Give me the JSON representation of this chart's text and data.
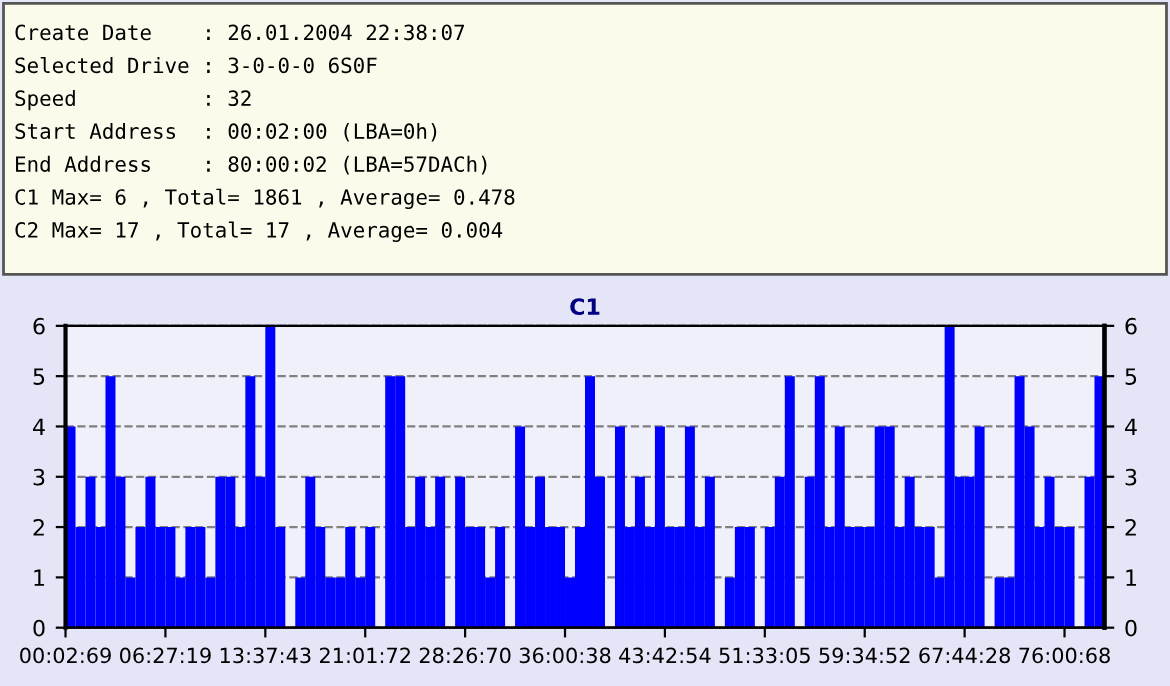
{
  "chart_data": {
    "type": "bar",
    "title": "C1",
    "color": "#0000ff",
    "categories": [
      "00:02:69",
      null,
      null,
      null,
      null,
      null,
      null,
      null,
      null,
      null,
      "06:27:19",
      null,
      null,
      null,
      null,
      null,
      null,
      null,
      null,
      null,
      "13:37:43",
      null,
      null,
      null,
      null,
      null,
      null,
      null,
      null,
      null,
      "21:01:72",
      null,
      null,
      null,
      null,
      null,
      null,
      null,
      null,
      null,
      "28:26:70",
      null,
      null,
      null,
      null,
      null,
      null,
      null,
      null,
      null,
      "36:00:38",
      null,
      null,
      null,
      null,
      null,
      null,
      null,
      null,
      null,
      "43:42:54",
      null,
      null,
      null,
      null,
      null,
      null,
      null,
      null,
      null,
      "51:33:05",
      null,
      null,
      null,
      null,
      null,
      null,
      null,
      null,
      null,
      "59:34:52",
      null,
      null,
      null,
      null,
      null,
      null,
      null,
      null,
      null,
      "67:44:28",
      null,
      null,
      null,
      null,
      null,
      null,
      null,
      null,
      null,
      "76:00:68",
      null,
      null,
      null
    ],
    "values": [
      4,
      2,
      3,
      2,
      5,
      3,
      1,
      2,
      3,
      2,
      2,
      1,
      2,
      2,
      1,
      3,
      3,
      2,
      5,
      3,
      6,
      2,
      0,
      1,
      3,
      2,
      1,
      1,
      2,
      1,
      2,
      0,
      5,
      5,
      2,
      3,
      2,
      3,
      0,
      3,
      2,
      2,
      1,
      2,
      0,
      4,
      2,
      3,
      2,
      2,
      1,
      2,
      5,
      3,
      0,
      4,
      2,
      3,
      2,
      4,
      2,
      2,
      4,
      2,
      3,
      0,
      1,
      2,
      2,
      0,
      2,
      3,
      5,
      0,
      3,
      5,
      2,
      4,
      2,
      2,
      2,
      4,
      4,
      2,
      3,
      2,
      2,
      1,
      6,
      3,
      3,
      4,
      0,
      1,
      1,
      5,
      4,
      2,
      3,
      2,
      2,
      0,
      3,
      5
    ],
    "ylim": [
      0,
      6
    ],
    "yticks": [
      0,
      1,
      2,
      3,
      4,
      5,
      6
    ],
    "y2lim": [
      0,
      6
    ],
    "y2ticks": [
      0,
      1,
      2,
      3,
      4,
      5,
      6
    ],
    "grid": "y",
    "line_style": "dashed",
    "annotations": [
      "Create Date    : 26.01.2004 22:38:07",
      "Selected Drive : 3-0-0-0 6S0F",
      "Speed          : 32",
      "Start Address  : 00:02:00 (LBA=0h)",
      "End Address    : 80:00:02 (LBA=57DACh)",
      "C1 Max= 6 , Total= 1861 , Average= 0.478",
      "C2 Max= 17 , Total= 17 , Average= 0.004"
    ]
  }
}
